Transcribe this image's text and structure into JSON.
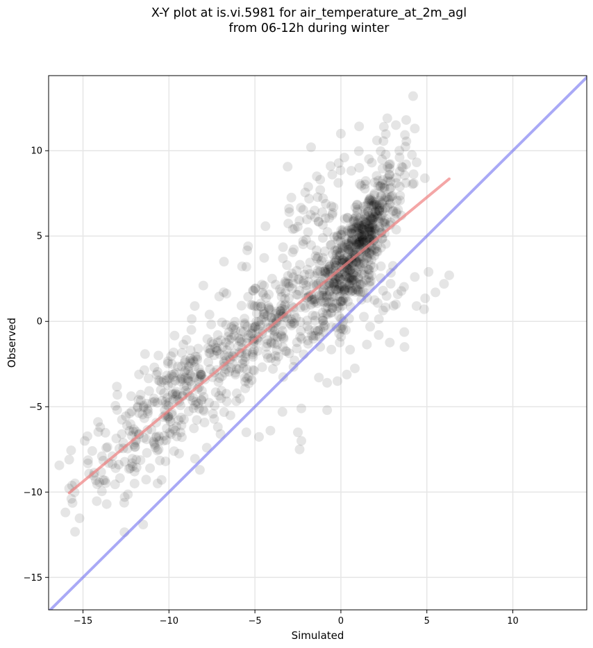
{
  "figure": {
    "title_line1": "X-Y plot at is.vi.5981 for air_temperature_at_2m_agl",
    "title_line2": "from 06-12h during winter"
  },
  "chart_data": {
    "type": "scatter",
    "title": "X-Y plot at is.vi.5981 for air_temperature_at_2m_agl\nfrom 06-12h during winter",
    "xlabel": "Simulated",
    "ylabel": "Observed",
    "xlim": [
      -17,
      14.3
    ],
    "ylim": [
      -16.9,
      14.4
    ],
    "xticks": [
      -15,
      -10,
      -5,
      0,
      5,
      10
    ],
    "yticks": [
      -15,
      -10,
      -5,
      0,
      5,
      10
    ],
    "xtick_labels": [
      "−15",
      "−10",
      "−5",
      "0",
      "5",
      "10"
    ],
    "ytick_labels": [
      "−15",
      "−10",
      "−5",
      "0",
      "5",
      "10"
    ],
    "grid": true,
    "colors": {
      "points": "#000000",
      "fit_line": "#f08080",
      "identity_line": "#7070f0",
      "grid": "#e6e6e6"
    },
    "lines": [
      {
        "role": "regression fit",
        "x": [
          -15.8,
          6.3
        ],
        "y": [
          -10.05,
          8.35
        ]
      },
      {
        "role": "1:1 identity",
        "x": [
          -17,
          14.3
        ],
        "y": [
          -17,
          14.3
        ]
      }
    ],
    "clusters": [
      {
        "cx": -9.5,
        "cy": -4.3,
        "sx": 3.0,
        "spread_y": 1.6,
        "slope": 0.85,
        "n": 360
      },
      {
        "cx": -3.5,
        "cy": 0.0,
        "sx": 2.2,
        "spread_y": 1.4,
        "slope": 0.9,
        "n": 250
      },
      {
        "cx": 0.2,
        "cy": 3.0,
        "sx": 1.0,
        "spread_y": 1.3,
        "slope": 1.0,
        "n": 240
      },
      {
        "cx": 1.5,
        "cy": 5.3,
        "sx": 0.8,
        "spread_y": 1.0,
        "slope": 1.2,
        "n": 220
      },
      {
        "cx": 2.8,
        "cy": 7.8,
        "sx": 0.8,
        "spread_y": 1.4,
        "slope": 1.0,
        "n": 70
      },
      {
        "cx": 0.5,
        "cy": 0.5,
        "sx": 1.6,
        "spread_y": 1.5,
        "slope": 0.3,
        "n": 80
      },
      {
        "cx": -1.0,
        "cy": 6.5,
        "sx": 1.8,
        "spread_y": 1.5,
        "slope": 0.5,
        "n": 60
      }
    ],
    "points": [
      [
        -15.8,
        -8.1
      ],
      [
        -11.5,
        -11.9
      ],
      [
        -14.0,
        -6.2
      ],
      [
        -13.5,
        -8.3
      ],
      [
        -13.0,
        -4.3
      ],
      [
        -12.0,
        -9.5
      ],
      [
        -10.2,
        -8.2
      ],
      [
        -8.2,
        -8.7
      ],
      [
        -7.8,
        -7.4
      ],
      [
        -8.5,
        0.9
      ],
      [
        -8.0,
        2.1
      ],
      [
        -6.8,
        3.5
      ],
      [
        -5.5,
        3.2
      ],
      [
        -5.4,
        4.4
      ],
      [
        -2.2,
        4.7
      ],
      [
        -3.0,
        6.4
      ],
      [
        -1.5,
        6.1
      ],
      [
        0.0,
        11.0
      ],
      [
        3.2,
        11.5
      ],
      [
        4.2,
        13.2
      ],
      [
        3.8,
        11.8
      ],
      [
        4.3,
        11.3
      ],
      [
        2.7,
        11.9
      ],
      [
        5.5,
        1.7
      ],
      [
        6.0,
        2.2
      ],
      [
        6.3,
        2.7
      ],
      [
        5.1,
        2.9
      ],
      [
        4.3,
        2.6
      ],
      [
        4.4,
        0.9
      ],
      [
        3.2,
        1.0
      ],
      [
        3.7,
        -1.5
      ],
      [
        2.2,
        -0.8
      ],
      [
        -0.2,
        -3.5
      ],
      [
        -0.8,
        -3.6
      ],
      [
        -0.8,
        -5.2
      ],
      [
        -2.3,
        -7.0
      ],
      [
        -2.5,
        -6.5
      ],
      [
        -2.4,
        -7.5
      ],
      [
        -2.3,
        -5.1
      ],
      [
        -3.4,
        -5.3
      ],
      [
        -4.1,
        -6.4
      ],
      [
        -5.5,
        -6.5
      ],
      [
        -7.0,
        -6.6
      ],
      [
        -10.6,
        -7.5
      ],
      [
        -9.7,
        -7.6
      ],
      [
        -13.1,
        -8.6
      ],
      [
        -13.9,
        -7.9
      ],
      [
        -12.0,
        -8.8
      ],
      [
        -11.9,
        -8.1
      ],
      [
        -11.1,
        -8.6
      ],
      [
        -0.5,
        8.6
      ],
      [
        0.2,
        9.6
      ],
      [
        -0.6,
        9.1
      ],
      [
        -1.2,
        7.7
      ],
      [
        2.1,
        10.6
      ],
      [
        3.4,
        10.0
      ],
      [
        3.8,
        9.2
      ],
      [
        1.8,
        9.3
      ],
      [
        -1.4,
        8.5
      ],
      [
        2.5,
        11.4
      ]
    ]
  }
}
